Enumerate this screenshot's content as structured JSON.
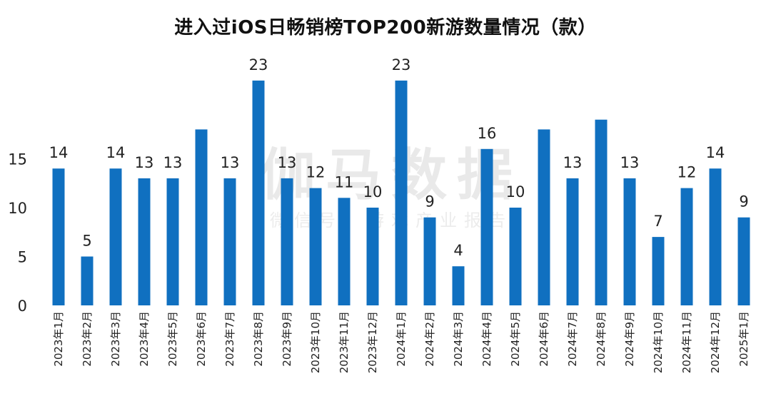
{
  "title": "进入过iOS日畅销榜TOP200新游数量情况（款）",
  "watermark": {
    "main": "伽马数据",
    "sub": "微信号：游戏产业报告"
  },
  "colors": {
    "bar": "#1070c0",
    "text": "#222222"
  },
  "chart_data": {
    "type": "bar",
    "title": "进入过iOS日畅销榜TOP200新游数量情况（款）",
    "xlabel": "",
    "ylabel": "",
    "ylim": [
      0,
      25
    ],
    "yticks": [
      0,
      5,
      10,
      15
    ],
    "grid": false,
    "categories": [
      "2023年1月",
      "2023年2月",
      "2023年3月",
      "2023年4月",
      "2023年5月",
      "2023年6月",
      "2023年7月",
      "2023年8月",
      "2023年9月",
      "2023年10月",
      "2023年11月",
      "2023年12月",
      "2024年1月",
      "2024年2月",
      "2024年3月",
      "2024年4月",
      "2024年5月",
      "2024年6月",
      "2024年7月",
      "2024年8月",
      "2024年9月",
      "2024年10月",
      "2024年11月",
      "2024年12月",
      "2025年1月"
    ],
    "values": [
      14,
      5,
      14,
      13,
      13,
      18,
      13,
      23,
      13,
      12,
      11,
      10,
      23,
      9,
      4,
      16,
      10,
      18,
      13,
      19,
      13,
      7,
      12,
      14,
      9
    ],
    "data_labels": [
      "14",
      "5",
      "14",
      "13",
      "13",
      "",
      "13",
      "23",
      "13",
      "12",
      "11",
      "10",
      "23",
      "9",
      "4",
      "16",
      "10",
      "",
      "13",
      "",
      "13",
      "7",
      "12",
      "14",
      "9"
    ]
  }
}
